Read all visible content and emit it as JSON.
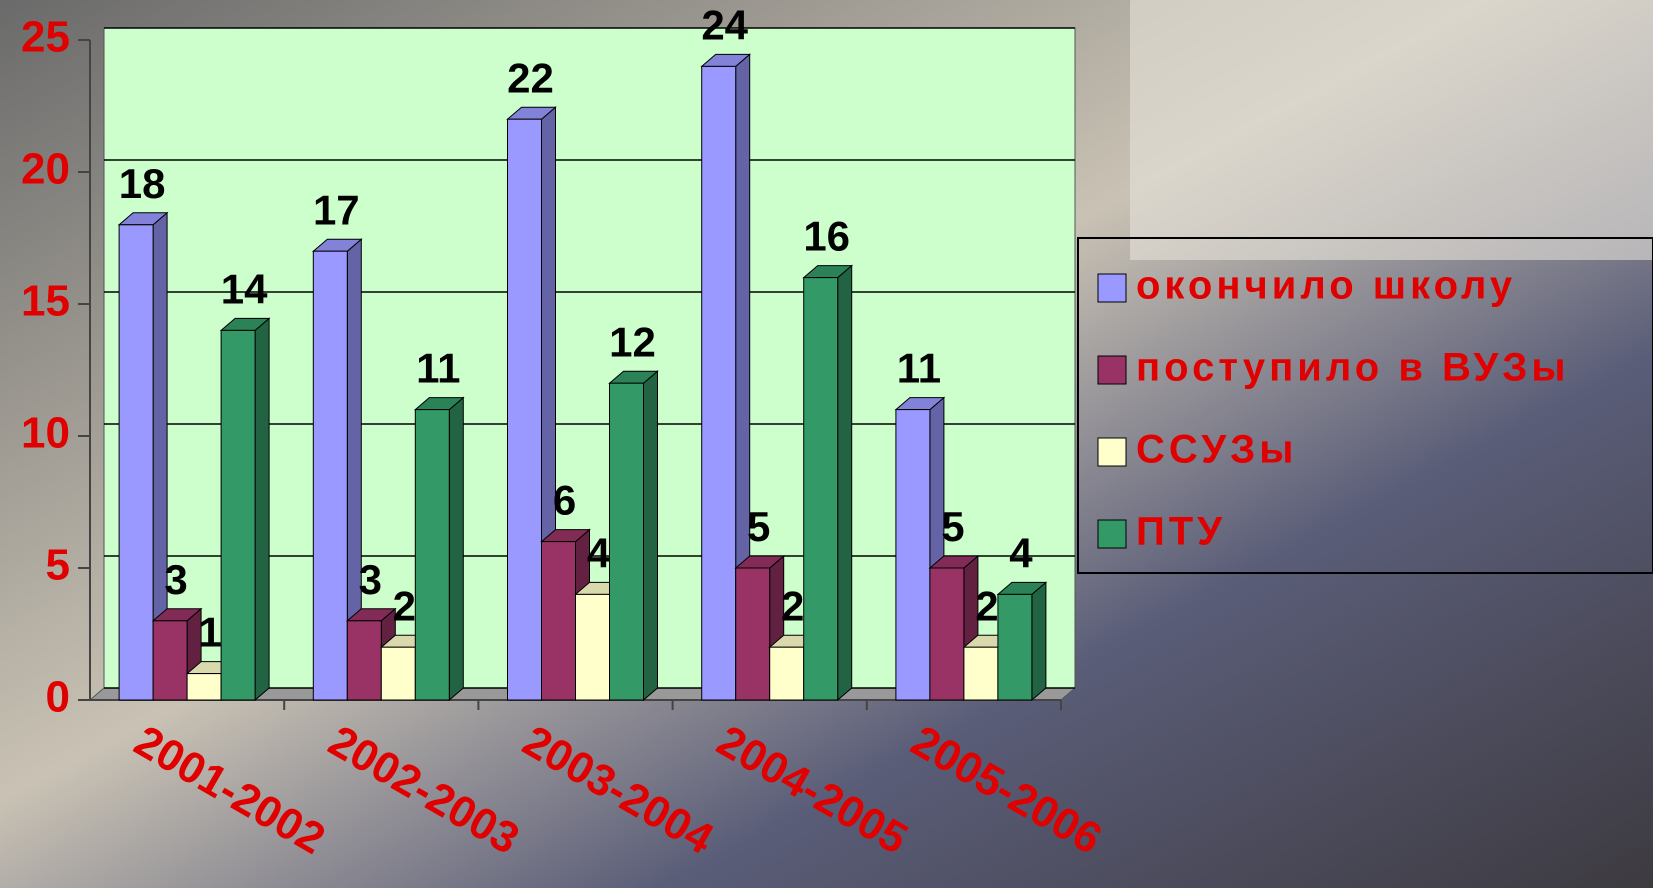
{
  "chart_data": {
    "type": "bar3d",
    "categories": [
      "2001-2002",
      "2002-2003",
      "2003-2004",
      "2004-2005",
      "2005-2006"
    ],
    "series": [
      {
        "name": "окончило школу",
        "color": "#9999ff",
        "values": [
          18,
          17,
          22,
          24,
          11
        ]
      },
      {
        "name": "поступило в ВУЗы",
        "color": "#993366",
        "values": [
          3,
          3,
          6,
          5,
          5
        ]
      },
      {
        "name": "ССУЗы",
        "color": "#ffffcc",
        "values": [
          1,
          2,
          4,
          2,
          2
        ]
      },
      {
        "name": "ПТУ",
        "color": "#339966",
        "values": [
          14,
          11,
          12,
          16,
          4
        ]
      }
    ],
    "ylim": [
      0,
      25
    ],
    "yticks": [
      0,
      5,
      10,
      15,
      20,
      25
    ],
    "grid": true,
    "legend": "right"
  }
}
